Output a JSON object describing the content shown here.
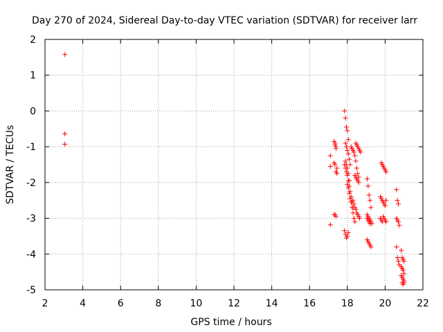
{
  "chart_data": {
    "type": "scatter",
    "title": "Day 270 of 2024, Sidereal Day-to-day VTEC variation (SDTVAR) for receiver larr",
    "xlabel": "GPS time / hours",
    "ylabel": "SDTVAR / TECUs",
    "xlim": [
      2,
      22
    ],
    "ylim": [
      -5,
      2
    ],
    "xticks": [
      "2",
      "4",
      "6",
      "8",
      "10",
      "12",
      "14",
      "16",
      "18",
      "20",
      "22"
    ],
    "yticks": [
      "2",
      "1",
      "0",
      "-1",
      "-2",
      "-3",
      "-4",
      "-5"
    ],
    "grid": true,
    "marker": "+",
    "color": "#ff0000",
    "series": [
      {
        "name": "SDTVAR",
        "x": [
          3.05,
          3.05,
          3.05,
          17.1,
          17.1,
          17.1,
          17.3,
          17.35,
          17.4,
          17.3,
          17.35,
          17.4,
          17.45,
          17.3,
          17.35,
          17.4,
          17.35,
          17.4,
          17.45,
          17.85,
          17.9,
          17.95,
          18.0,
          18.05,
          17.9,
          17.95,
          18.0,
          18.05,
          18.1,
          17.9,
          17.95,
          18.0,
          18.05,
          18.1,
          18.15,
          17.85,
          17.9,
          17.95,
          18.0,
          18.05,
          18.1,
          18.15,
          18.2,
          18.25,
          18.3,
          18.0,
          18.05,
          18.1,
          18.15,
          18.2,
          18.25,
          18.3,
          18.35,
          18.4,
          18.2,
          18.25,
          18.3,
          18.35,
          18.4,
          18.45,
          18.5,
          18.55,
          18.6,
          18.3,
          18.35,
          18.4,
          18.45,
          18.5,
          18.55,
          18.6,
          18.65,
          18.45,
          18.5,
          18.55,
          18.6,
          18.65,
          18.7,
          18.4,
          18.45,
          18.5,
          18.55,
          18.6,
          17.85,
          17.9,
          17.95,
          18.0,
          18.05,
          19.05,
          19.1,
          19.15,
          19.2,
          19.25,
          19.05,
          19.1,
          19.15,
          19.2,
          19.05,
          19.1,
          19.15,
          19.2,
          19.25,
          19.05,
          19.1,
          19.15,
          19.2,
          19.25,
          19.3,
          19.8,
          19.85,
          19.9,
          19.95,
          20.0,
          20.05,
          19.75,
          19.8,
          19.85,
          19.9,
          19.95,
          20.0,
          20.05,
          19.75,
          19.8,
          19.85,
          19.9,
          19.95,
          20.0,
          20.05,
          20.6,
          20.65,
          20.7,
          20.6,
          20.65,
          20.7,
          20.75,
          20.6,
          20.65,
          20.7,
          20.75,
          20.85,
          20.9,
          20.95,
          21.0,
          20.85,
          20.9,
          20.95,
          21.0,
          20.85,
          20.9,
          20.95,
          21.0,
          20.9,
          20.95,
          21.0,
          20.95
        ],
        "y": [
          1.58,
          -0.64,
          -0.93,
          -1.25,
          -1.55,
          -3.18,
          -0.85,
          -0.95,
          -1.0,
          -1.45,
          -1.5,
          -1.7,
          -1.75,
          -2.9,
          -2.9,
          -2.95,
          -0.9,
          -1.05,
          -1.6,
          0.0,
          -0.2,
          -0.45,
          -0.55,
          -0.8,
          -1.4,
          -1.5,
          -1.6,
          -1.75,
          -1.95,
          -0.9,
          -1.0,
          -1.1,
          -1.2,
          -1.35,
          -1.5,
          -1.5,
          -1.6,
          -1.7,
          -1.8,
          -1.95,
          -2.1,
          -2.25,
          -2.4,
          -2.55,
          -2.7,
          -2.05,
          -2.15,
          -2.3,
          -2.45,
          -2.55,
          -2.7,
          -2.85,
          -3.0,
          -3.1,
          -1.0,
          -1.05,
          -1.1,
          -1.15,
          -1.25,
          -1.4,
          -1.6,
          -1.75,
          -1.85,
          -2.5,
          -2.6,
          -2.7,
          -2.75,
          -2.85,
          -2.9,
          -2.95,
          -3.0,
          -0.9,
          -0.95,
          -1.0,
          -1.05,
          -1.1,
          -1.15,
          -1.8,
          -1.85,
          -1.9,
          -1.95,
          -2.0,
          -3.35,
          -3.45,
          -3.55,
          -3.5,
          -3.4,
          -1.9,
          -2.1,
          -2.35,
          -2.5,
          -2.7,
          -3.0,
          -3.05,
          -3.1,
          -3.15,
          -3.6,
          -3.65,
          -3.7,
          -3.75,
          -3.8,
          -2.9,
          -2.95,
          -3.0,
          -3.05,
          -3.1,
          -3.15,
          -1.45,
          -1.5,
          -1.55,
          -1.6,
          -1.65,
          -1.7,
          -2.4,
          -2.45,
          -2.5,
          -2.55,
          -2.6,
          -2.65,
          -2.5,
          -3.0,
          -3.05,
          -3.1,
          -2.95,
          -3.0,
          -3.05,
          -3.1,
          -2.2,
          -2.5,
          -2.6,
          -3.0,
          -3.05,
          -3.1,
          -3.2,
          -3.8,
          -4.1,
          -4.2,
          -4.3,
          -3.9,
          -4.1,
          -4.15,
          -4.2,
          -4.35,
          -4.4,
          -4.45,
          -4.55,
          -4.6,
          -4.65,
          -4.7,
          -4.75,
          -4.8,
          -4.85,
          -4.8,
          -4.45
        ]
      }
    ]
  }
}
